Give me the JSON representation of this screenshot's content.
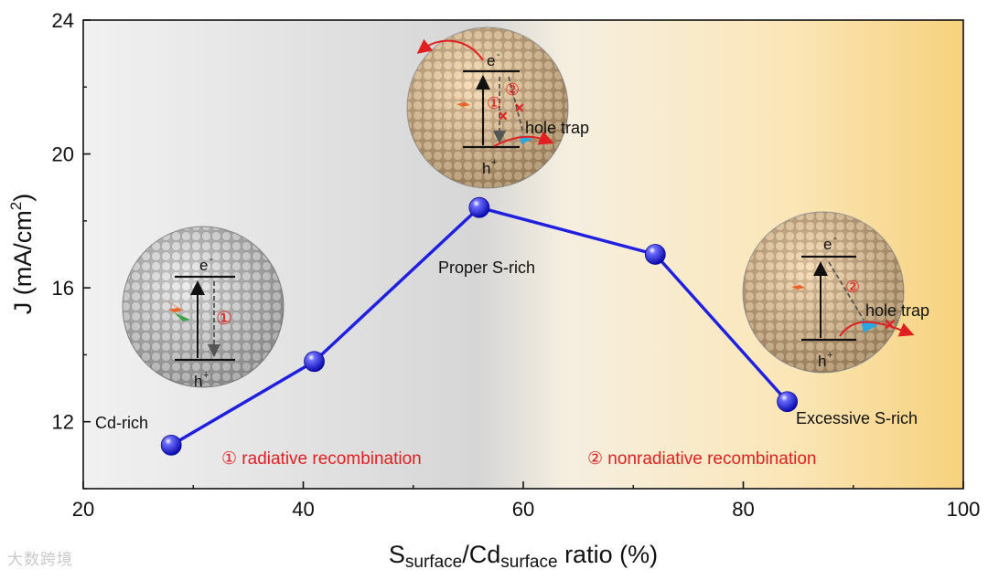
{
  "chart_data": {
    "type": "line",
    "xlabel_main_S": "S",
    "xlabel_sub1": "surface",
    "xlabel_slash_Cd": "/Cd",
    "xlabel_sub2": "surface",
    "xlabel_tail": " ratio (%)",
    "ylabel": "J (mA/cm",
    "ylabel_sup": "2",
    "ylabel_end": ")",
    "xlim": [
      20,
      100
    ],
    "ylim": [
      10,
      24
    ],
    "x_ticks": [
      20,
      40,
      60,
      80,
      100
    ],
    "y_ticks": [
      12,
      16,
      20,
      24
    ],
    "x": [
      28,
      41,
      56,
      72,
      84
    ],
    "y": [
      11.3,
      13.8,
      18.4,
      17.0,
      12.6
    ],
    "series_color": "#1f1fe0",
    "point_labels": {
      "cd_rich": "Cd-rich",
      "proper": "Proper S-rich",
      "excessive": "Excessive S-rich"
    },
    "legend": {
      "radiative": "① radiative recombination",
      "nonradiative": "② nonradiative recombination",
      "color": "#e02020"
    },
    "insets": {
      "electron": "e",
      "electron_sup": "-",
      "hole": "h",
      "hole_sup": "+",
      "hole_trap": "hole trap",
      "mark1": "①",
      "mark2": "②"
    },
    "background": {
      "left_color": "#efefef",
      "mid_color": "#d8d8d8",
      "right_color": "#f8d68a"
    }
  },
  "watermark": "大数跨境"
}
